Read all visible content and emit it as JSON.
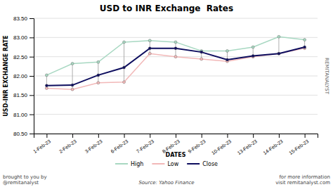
{
  "chart_data": {
    "type": "line",
    "title": "USD to INR Exchange  Rates",
    "xlabel": "DATES",
    "ylabel": "USD-INR EXCHANGE RATE",
    "categories": [
      "1-Feb-23",
      "2-Feb-23",
      "3-Feb-23",
      "6-Feb-23",
      "7-Feb-23",
      "8-Feb-23",
      "9-Feb-23",
      "10-Feb-23",
      "13-Feb-23",
      "14-Feb-23",
      "15-Feb-23"
    ],
    "series": [
      {
        "name": "High",
        "color": "#a8d8c2",
        "values": [
          82.02,
          82.32,
          82.36,
          82.88,
          82.92,
          82.88,
          82.65,
          82.65,
          82.75,
          83.02,
          82.94
        ]
      },
      {
        "name": "Low",
        "color": "#f2b8b8",
        "values": [
          81.68,
          81.65,
          81.82,
          81.84,
          82.58,
          82.5,
          82.44,
          82.38,
          82.5,
          82.58,
          82.72
        ]
      },
      {
        "name": "Close",
        "color": "#0d0d5e",
        "values": [
          81.75,
          81.76,
          82.02,
          82.22,
          82.72,
          82.72,
          82.62,
          82.42,
          82.52,
          82.58,
          82.75
        ]
      }
    ],
    "ylim": [
      80.5,
      83.5
    ],
    "yticks": [
      {
        "value": 80.5,
        "label": "80.50"
      },
      {
        "value": 81,
        "label": "81.00"
      },
      {
        "value": 81.5,
        "label": "81.50"
      },
      {
        "value": 82,
        "label": "82.00"
      },
      {
        "value": 82.5,
        "label": "82.50"
      },
      {
        "value": 83,
        "label": "83.00"
      },
      {
        "value": 83.5,
        "label": "83.50"
      }
    ],
    "grid": true,
    "legend": "bottom",
    "marker": "circle",
    "annotations": [
      "brought to you by\n@remitanalyst",
      "Source: Yahoo Finance",
      "for more information\nvisit remitanalyst.com",
      "REMITANALYST"
    ]
  }
}
